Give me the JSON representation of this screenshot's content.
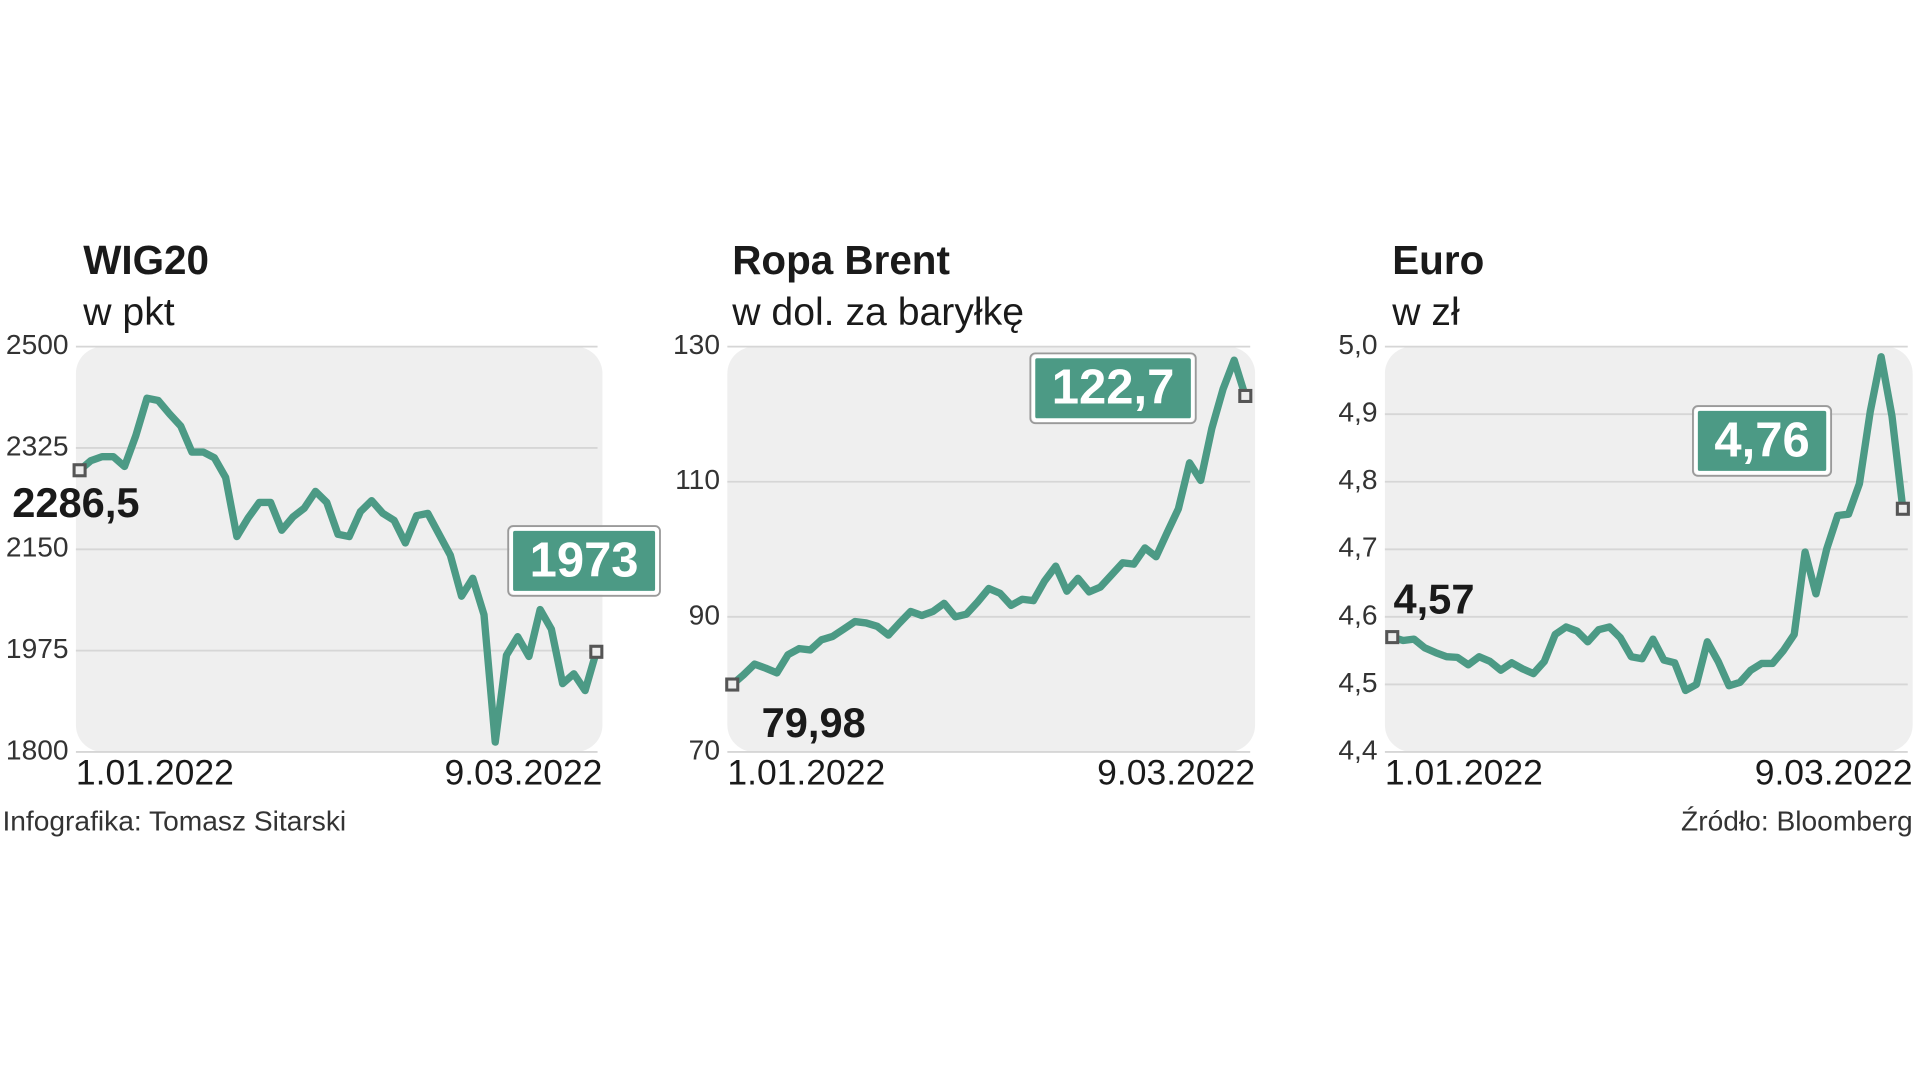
{
  "chart_data": [
    {
      "type": "line",
      "title": "WIG20",
      "subtitle": "w pkt",
      "color": "#4c9a85",
      "ylim": [
        1800,
        2500
      ],
      "yticks": [
        1800,
        1975,
        2150,
        2325,
        2500
      ],
      "grid": true,
      "categories": [
        "1.01.2022",
        null,
        null,
        null,
        null,
        null,
        null,
        null,
        null,
        null,
        null,
        null,
        null,
        null,
        null,
        null,
        null,
        null,
        null,
        null,
        null,
        null,
        null,
        null,
        null,
        null,
        null,
        null,
        null,
        null,
        null,
        null,
        null,
        null,
        null,
        null,
        null,
        null,
        null,
        null,
        null,
        null,
        null,
        null,
        null,
        null,
        "9.03.2022"
      ],
      "values": [
        2286.5,
        2303,
        2310,
        2310,
        2293,
        2346,
        2411,
        2407,
        2384,
        2363,
        2318,
        2318,
        2308,
        2274,
        2172,
        2204,
        2231,
        2231,
        2183,
        2206,
        2221,
        2250,
        2231,
        2176,
        2172,
        2215,
        2234,
        2212,
        2200,
        2161,
        2208,
        2212,
        2176,
        2140,
        2069,
        2100,
        2037,
        1817,
        1967,
        1999,
        1965,
        2046,
        2012,
        1918,
        1935,
        1906,
        1973
      ],
      "value_labels": [
        "2286,5",
        null,
        null,
        null,
        null,
        null,
        null,
        null,
        null,
        null,
        null,
        null,
        null,
        null,
        null,
        null,
        null,
        null,
        null,
        null,
        null,
        null,
        null,
        null,
        null,
        null,
        null,
        null,
        null,
        null,
        null,
        null,
        null,
        null,
        null,
        null,
        null,
        null,
        null,
        null,
        null,
        null,
        null,
        null,
        null,
        null,
        "1973"
      ]
    },
    {
      "type": "line",
      "title": "Ropa Brent",
      "subtitle": "w dol. za baryłkę",
      "color": "#4c9a85",
      "ylim": [
        70,
        130
      ],
      "yticks": [
        70,
        90,
        110,
        130
      ],
      "grid": true,
      "categories": [
        "1.01.2022",
        null,
        null,
        null,
        null,
        null,
        null,
        null,
        null,
        null,
        null,
        null,
        null,
        null,
        null,
        null,
        null,
        null,
        null,
        null,
        null,
        null,
        null,
        null,
        null,
        null,
        null,
        null,
        null,
        null,
        null,
        null,
        null,
        null,
        null,
        null,
        null,
        null,
        null,
        null,
        null,
        null,
        null,
        null,
        null,
        null,
        "9.03.2022"
      ],
      "values": [
        79.98,
        81.4,
        83.0,
        82.4,
        81.7,
        84.4,
        85.3,
        85.1,
        86.6,
        87.1,
        88.2,
        89.3,
        89.1,
        88.6,
        87.3,
        89.1,
        90.8,
        90.2,
        90.8,
        92.0,
        90.0,
        90.4,
        92.2,
        94.2,
        93.5,
        91.7,
        92.6,
        92.4,
        95.3,
        97.5,
        93.8,
        95.7,
        93.7,
        94.4,
        96.2,
        98.0,
        97.8,
        100.2,
        98.9,
        102.5,
        106.0,
        112.8,
        110.2,
        117.9,
        123.7,
        128.0,
        122.7
      ],
      "value_labels": [
        "79,98",
        null,
        null,
        null,
        null,
        null,
        null,
        null,
        null,
        null,
        null,
        null,
        null,
        null,
        null,
        null,
        null,
        null,
        null,
        null,
        null,
        null,
        null,
        null,
        null,
        null,
        null,
        null,
        null,
        null,
        null,
        null,
        null,
        null,
        null,
        null,
        null,
        null,
        null,
        null,
        null,
        null,
        null,
        null,
        null,
        null,
        "122,7"
      ]
    },
    {
      "type": "line",
      "title": "Euro",
      "subtitle": "w zł",
      "color": "#4c9a85",
      "ylim": [
        4.4,
        5.0
      ],
      "yticks": [
        {
          "value": 4.4,
          "label": "4,4"
        },
        {
          "value": 4.5,
          "label": "4,5"
        },
        {
          "value": 4.6,
          "label": "4,6"
        },
        {
          "value": 4.7,
          "label": "4,7"
        },
        {
          "value": 4.8,
          "label": "4,8"
        },
        {
          "value": 4.9,
          "label": "4,9"
        },
        {
          "value": 5.0,
          "label": "5,0"
        }
      ],
      "grid": true,
      "categories": [
        "1.01.2022",
        null,
        null,
        null,
        null,
        null,
        null,
        null,
        null,
        null,
        null,
        null,
        null,
        null,
        null,
        null,
        null,
        null,
        null,
        null,
        null,
        null,
        null,
        null,
        null,
        null,
        null,
        null,
        null,
        null,
        null,
        null,
        null,
        null,
        null,
        null,
        null,
        null,
        null,
        null,
        null,
        null,
        null,
        null,
        null,
        null,
        null,
        "9.03.2022"
      ],
      "values": [
        4.57,
        4.565,
        4.567,
        4.554,
        4.547,
        4.541,
        4.54,
        4.529,
        4.541,
        4.534,
        4.521,
        4.532,
        4.523,
        4.516,
        4.534,
        4.574,
        4.585,
        4.579,
        4.563,
        4.581,
        4.585,
        4.569,
        4.541,
        4.538,
        4.567,
        4.536,
        4.532,
        4.491,
        4.5,
        4.563,
        4.534,
        4.498,
        4.503,
        4.521,
        4.531,
        4.531,
        4.55,
        4.574,
        4.696,
        4.634,
        4.701,
        4.75,
        4.752,
        4.797,
        4.904,
        4.985,
        4.897,
        4.76
      ],
      "value_labels": [
        "4,57",
        null,
        null,
        null,
        null,
        null,
        null,
        null,
        null,
        null,
        null,
        null,
        null,
        null,
        null,
        null,
        null,
        null,
        null,
        null,
        null,
        null,
        null,
        null,
        null,
        null,
        null,
        null,
        null,
        null,
        null,
        null,
        null,
        null,
        null,
        null,
        null,
        null,
        null,
        null,
        null,
        null,
        null,
        null,
        null,
        null,
        null,
        "4,76"
      ]
    }
  ],
  "footer": {
    "credit": "Infografika: Tomasz Sitarski",
    "source": "Źródło: Bloomberg"
  }
}
